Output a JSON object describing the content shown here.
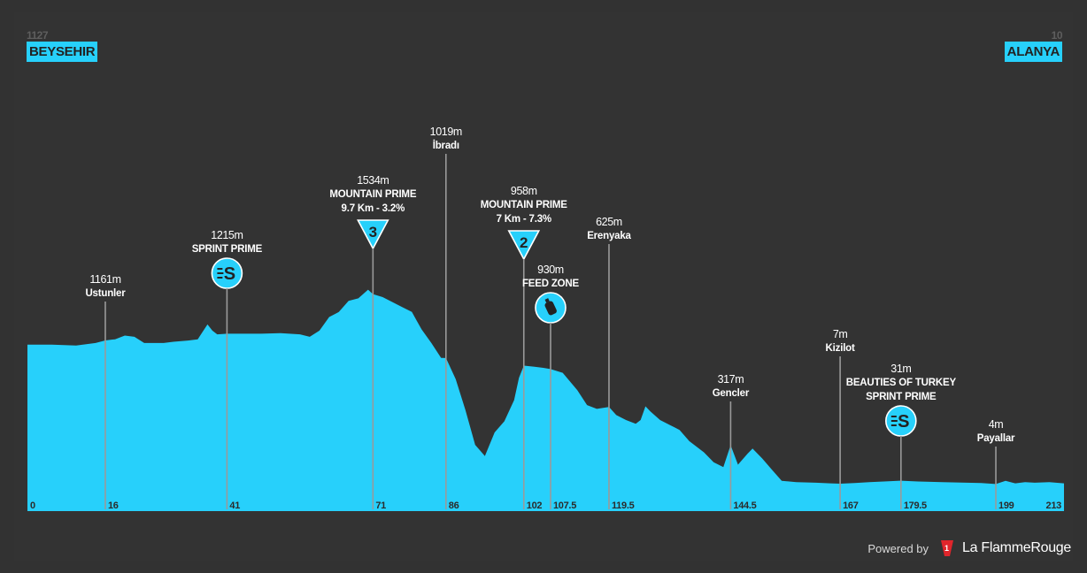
{
  "start": {
    "altitude": "1127",
    "town": "BEYSEHIR"
  },
  "finish": {
    "altitude": "10",
    "town": "ALANYA"
  },
  "footer": {
    "powered_by": "Powered by",
    "brand": "La FlammeRouge"
  },
  "colors": {
    "profile": "#27d0fb",
    "background": "#333333",
    "pin_line": "#9a9a9a"
  },
  "chart_data": {
    "type": "area",
    "title": "",
    "xlabel": "",
    "ylabel": "",
    "x_unit": "km",
    "xlim": [
      0,
      213
    ],
    "grid": false,
    "km_ticks": [
      "0",
      "16",
      "41",
      "71",
      "86",
      "102",
      "107.5",
      "119.5",
      "144.5",
      "167",
      "179.5",
      "199",
      "213"
    ],
    "profile": [
      [
        0,
        1127
      ],
      [
        5,
        1127
      ],
      [
        10,
        1120
      ],
      [
        14,
        1140
      ],
      [
        16,
        1161
      ],
      [
        18,
        1170
      ],
      [
        20,
        1200
      ],
      [
        22,
        1190
      ],
      [
        24,
        1140
      ],
      [
        28,
        1140
      ],
      [
        30,
        1150
      ],
      [
        33,
        1160
      ],
      [
        35,
        1170
      ],
      [
        36,
        1230
      ],
      [
        37,
        1290
      ],
      [
        38,
        1240
      ],
      [
        39,
        1210
      ],
      [
        41,
        1215
      ],
      [
        48,
        1215
      ],
      [
        52,
        1220
      ],
      [
        56,
        1210
      ],
      [
        58,
        1190
      ],
      [
        60,
        1240
      ],
      [
        62,
        1350
      ],
      [
        64,
        1390
      ],
      [
        66,
        1480
      ],
      [
        68,
        1500
      ],
      [
        70,
        1570
      ],
      [
        71,
        1534
      ],
      [
        73,
        1510
      ],
      [
        75,
        1470
      ],
      [
        77,
        1430
      ],
      [
        79,
        1390
      ],
      [
        80,
        1320
      ],
      [
        81,
        1250
      ],
      [
        83,
        1140
      ],
      [
        85,
        1020
      ],
      [
        86,
        1019
      ],
      [
        88,
        850
      ],
      [
        90,
        600
      ],
      [
        92,
        320
      ],
      [
        94,
        230
      ],
      [
        96,
        420
      ],
      [
        98,
        510
      ],
      [
        100,
        680
      ],
      [
        101,
        860
      ],
      [
        102,
        958
      ],
      [
        104,
        950
      ],
      [
        106,
        940
      ],
      [
        107.5,
        930
      ],
      [
        110,
        900
      ],
      [
        113,
        760
      ],
      [
        115,
        640
      ],
      [
        117,
        610
      ],
      [
        119.5,
        625
      ],
      [
        121,
        560
      ],
      [
        123,
        520
      ],
      [
        125,
        490
      ],
      [
        126,
        520
      ],
      [
        127,
        630
      ],
      [
        128,
        590
      ],
      [
        130,
        520
      ],
      [
        132,
        480
      ],
      [
        134,
        440
      ],
      [
        136,
        350
      ],
      [
        139,
        260
      ],
      [
        141,
        180
      ],
      [
        143,
        140
      ],
      [
        144.5,
        317
      ],
      [
        146,
        160
      ],
      [
        148,
        250
      ],
      [
        149,
        290
      ],
      [
        151,
        210
      ],
      [
        153,
        120
      ],
      [
        155,
        30
      ],
      [
        158,
        20
      ],
      [
        162,
        15
      ],
      [
        165,
        10
      ],
      [
        167,
        7
      ],
      [
        170,
        12
      ],
      [
        173,
        20
      ],
      [
        176,
        25
      ],
      [
        179.5,
        31
      ],
      [
        183,
        25
      ],
      [
        188,
        20
      ],
      [
        193,
        15
      ],
      [
        196,
        12
      ],
      [
        199,
        4
      ],
      [
        201,
        30
      ],
      [
        203,
        10
      ],
      [
        205,
        20
      ],
      [
        207,
        15
      ],
      [
        210,
        20
      ],
      [
        213,
        10
      ]
    ],
    "points_of_interest": [
      {
        "km": 16,
        "altitude": "1161m",
        "name": [
          "Ustunler"
        ],
        "icon": ""
      },
      {
        "km": 41,
        "altitude": "1215m",
        "name": [
          "SPRINT PRIME"
        ],
        "icon": "sprint-icon"
      },
      {
        "km": 71,
        "altitude": "1534m",
        "name": [
          "MOUNTAIN PRIME",
          "9.7 Km - 3.2%"
        ],
        "icon": "kom-cat-3-icon",
        "category": "3"
      },
      {
        "km": 86,
        "altitude": "1019m",
        "name": [
          "İbradı"
        ],
        "icon": ""
      },
      {
        "km": 102,
        "altitude": "958m",
        "name": [
          "MOUNTAIN PRIME",
          "7 Km - 7.3%"
        ],
        "icon": "kom-cat-2-icon",
        "category": "2"
      },
      {
        "km": 107.5,
        "altitude": "930m",
        "name": [
          "FEED ZONE"
        ],
        "icon": "feed-zone-icon"
      },
      {
        "km": 119.5,
        "altitude": "625m",
        "name": [
          "Erenyaka"
        ],
        "icon": ""
      },
      {
        "km": 144.5,
        "altitude": "317m",
        "name": [
          "Gencler"
        ],
        "icon": ""
      },
      {
        "km": 167,
        "altitude": "7m",
        "name": [
          "Kizilot"
        ],
        "icon": ""
      },
      {
        "km": 179.5,
        "altitude": "31m",
        "name": [
          "BEAUTIES OF TURKEY",
          "SPRINT PRIME"
        ],
        "icon": "sprint-icon"
      },
      {
        "km": 199,
        "altitude": "4m",
        "name": [
          "Payallar"
        ],
        "icon": ""
      }
    ]
  }
}
